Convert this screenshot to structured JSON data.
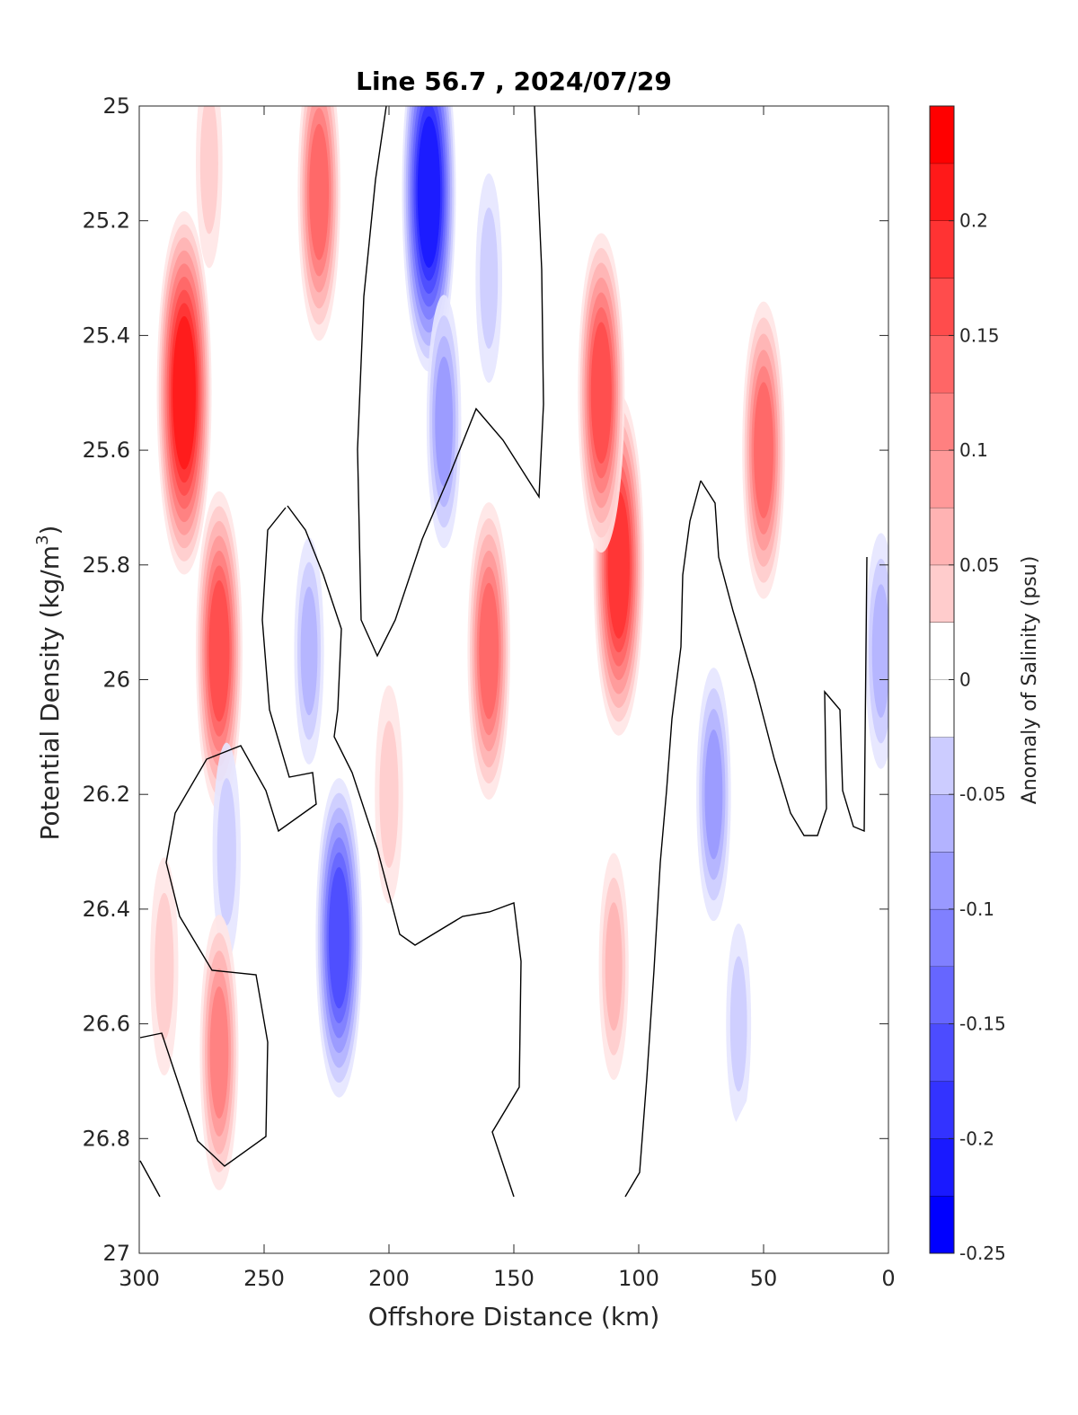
{
  "chart_data": {
    "type": "heatmap",
    "subtype": "filled-contour section",
    "title": "Line 56.7 , 2024/07/29",
    "xlabel": "Offshore Distance (km)",
    "ylabel": "Potential Density (kg/m",
    "ylabel_sup": "3",
    "ylabel_close": ")",
    "colorbar_label": "Anomaly of Salinity (psu)",
    "x_reversed": true,
    "y_reversed": true,
    "xlim": [
      0,
      300
    ],
    "ylim": [
      25,
      27
    ],
    "xticks": [
      300,
      250,
      200,
      150,
      100,
      50,
      0
    ],
    "xtick_labels": [
      "300",
      "250",
      "200",
      "150",
      "100",
      "50",
      "0"
    ],
    "yticks": [
      25,
      25.2,
      25.4,
      25.6,
      25.8,
      26,
      26.2,
      26.4,
      26.6,
      26.8,
      27
    ],
    "ytick_labels": [
      "25",
      "25.2",
      "25.4",
      "25.6",
      "25.8",
      "26",
      "26.2",
      "26.4",
      "26.6",
      "26.8",
      "27"
    ],
    "colorbar_range": [
      -0.25,
      0.25
    ],
    "colorbar_step": 0.025,
    "colorbar_ticks": [
      0.2,
      0.15,
      0.1,
      0.05,
      0,
      -0.05,
      -0.1,
      -0.15,
      -0.2,
      -0.25
    ],
    "colorbar_tick_labels": [
      "0.2",
      "0.15",
      "0.1",
      "0.05",
      "0",
      "-0.05",
      "-0.1",
      "-0.15",
      "-0.2",
      "-0.25"
    ],
    "colormap": "blue-white-red",
    "colors": {
      "negative_max": "#0000ff",
      "zero": "#ffffff",
      "positive_max": "#ff0000",
      "zero_contour": "#000000"
    },
    "features": [
      {
        "x": 282,
        "y": 25.5,
        "value": 0.225
      },
      {
        "x": 268,
        "y": 25.95,
        "value": 0.175
      },
      {
        "x": 228,
        "y": 25.15,
        "value": 0.15
      },
      {
        "x": 272,
        "y": 25.1,
        "value": 0.05
      },
      {
        "x": 184,
        "y": 25.15,
        "value": -0.22
      },
      {
        "x": 178,
        "y": 25.55,
        "value": -0.1
      },
      {
        "x": 160,
        "y": 25.3,
        "value": -0.05
      },
      {
        "x": 232,
        "y": 25.95,
        "value": -0.07
      },
      {
        "x": 160,
        "y": 25.95,
        "value": 0.15
      },
      {
        "x": 108,
        "y": 25.8,
        "value": 0.2
      },
      {
        "x": 115,
        "y": 25.5,
        "value": 0.175
      },
      {
        "x": 50,
        "y": 25.6,
        "value": 0.15
      },
      {
        "x": 70,
        "y": 26.2,
        "value": -0.1
      },
      {
        "x": 220,
        "y": 26.45,
        "value": -0.175
      },
      {
        "x": 265,
        "y": 26.3,
        "value": -0.06
      },
      {
        "x": 200,
        "y": 26.2,
        "value": 0.06
      },
      {
        "x": 110,
        "y": 26.5,
        "value": 0.07
      },
      {
        "x": 268,
        "y": 26.65,
        "value": 0.125
      },
      {
        "x": 290,
        "y": 26.5,
        "value": 0.06
      },
      {
        "x": 60,
        "y": 26.6,
        "value": -0.04
      },
      {
        "x": 3,
        "y": 25.95,
        "value": -0.08
      }
    ],
    "data_extent": [
      {
        "x": 300,
        "y_max": 26.9
      },
      {
        "x": 250,
        "y_max": 26.9
      },
      {
        "x": 200,
        "y_max": 26.9
      },
      {
        "x": 150,
        "y_max": 26.9
      },
      {
        "x": 100,
        "y_max": 26.9
      },
      {
        "x": 70,
        "y_max": 26.85
      },
      {
        "x": 30,
        "y_max": 26.5
      },
      {
        "x": 0,
        "y_max": 26.2
      }
    ]
  }
}
